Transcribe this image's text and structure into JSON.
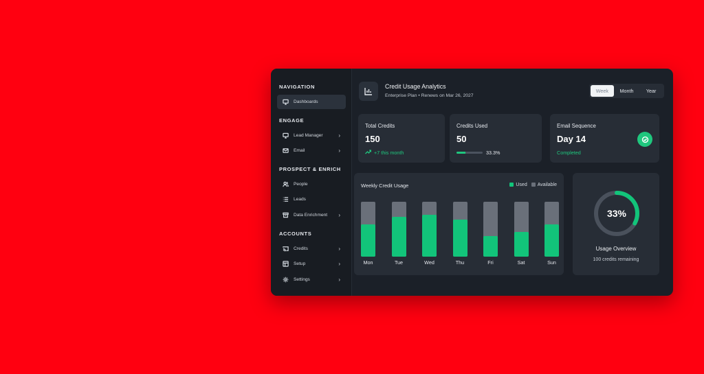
{
  "sidebar": {
    "sections": [
      {
        "title": "NAVIGATION",
        "items": [
          {
            "label": "Dashboards",
            "icon": "monitor-icon",
            "active": true
          }
        ]
      },
      {
        "title": "ENGAGE",
        "items": [
          {
            "label": "Lead Manager",
            "icon": "monitor-icon"
          },
          {
            "label": "Email",
            "icon": "mail-icon"
          }
        ]
      },
      {
        "title": "PROSPECT & ENRICH",
        "items": [
          {
            "label": "People",
            "icon": "users-icon"
          },
          {
            "label": "Leads",
            "icon": "list-icon"
          },
          {
            "label": "Data Enrichment",
            "icon": "archive-icon"
          }
        ]
      },
      {
        "title": "ACCOUNTS",
        "items": [
          {
            "label": "Credits",
            "icon": "cast-icon"
          },
          {
            "label": "Setup",
            "icon": "layout-icon"
          },
          {
            "label": "Settings",
            "icon": "gear-icon"
          }
        ]
      }
    ]
  },
  "header": {
    "title": "Credit Usage Analytics",
    "subtitle": "Enterprise Plan • Renews on Mar 26, 2027",
    "periods": [
      "Week",
      "Month",
      "Year"
    ],
    "active_period": "Week"
  },
  "stats": {
    "total": {
      "label": "Total Credits",
      "value": "150",
      "sub": "+7 this month"
    },
    "used": {
      "label": "Credits Used",
      "value": "50",
      "percent": "33.3%",
      "progress": 0.333
    },
    "sequence": {
      "label": "Email Sequence",
      "value": "Day 14",
      "status": "Completed"
    }
  },
  "chart": {
    "title": "Weekly Credit Usage",
    "legend_used": "Used",
    "legend_available": "Available"
  },
  "chart_data": {
    "type": "bar",
    "stacked": true,
    "categories": [
      "Mon",
      "Tue",
      "Wed",
      "Thu",
      "Fri",
      "Sat",
      "Sun"
    ],
    "series": [
      {
        "name": "Used",
        "values": [
          59,
          73,
          76,
          68,
          38,
          45,
          59
        ],
        "color": "#12c47a"
      },
      {
        "name": "Available",
        "values": [
          41,
          27,
          24,
          32,
          62,
          55,
          41
        ],
        "color": "#6a707a"
      }
    ],
    "ylim": [
      0,
      100
    ]
  },
  "usage": {
    "percent_label": "33%",
    "percent": 0.33,
    "title": "Usage Overview",
    "sub": "100 credits remaining"
  },
  "colors": {
    "accent": "#12c47a",
    "background": "#ff0010",
    "panel": "#1b2028",
    "card": "#272d36"
  }
}
